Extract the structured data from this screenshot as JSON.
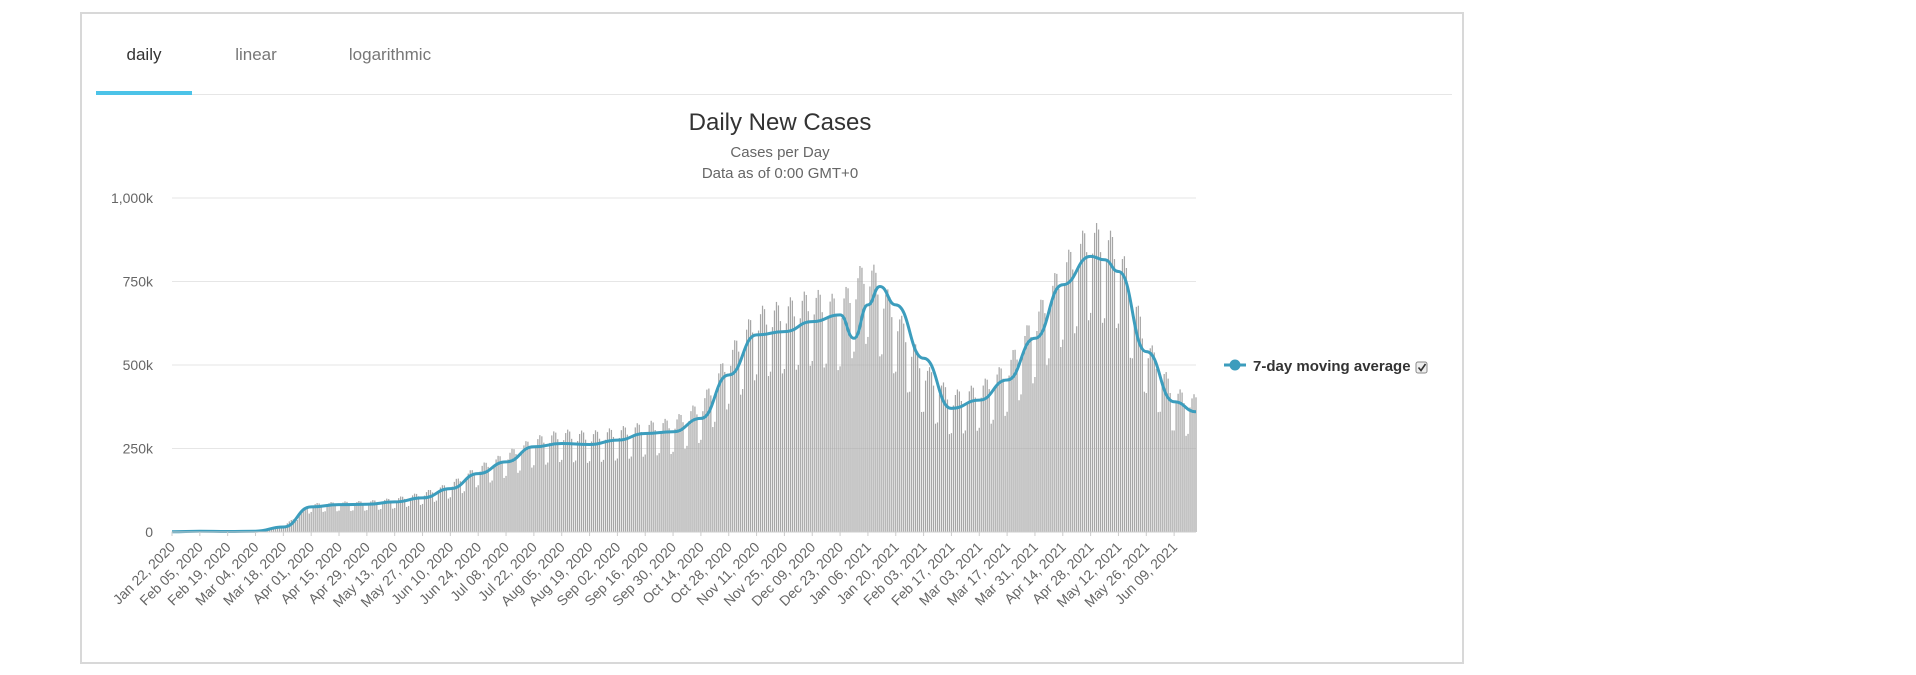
{
  "tabs": [
    {
      "label": "daily",
      "active": true
    },
    {
      "label": "linear",
      "active": false
    },
    {
      "label": "logarithmic",
      "active": false
    }
  ],
  "colors": {
    "accent": "#4cc3e8",
    "line": "#3c9dbd",
    "bars": "#a6a6a6",
    "grid": "#e6e6e6"
  },
  "chart_data": {
    "type": "bar",
    "title": "Daily New Cases",
    "subtitle": [
      "Cases per Day",
      "Data as of 0:00 GMT+0"
    ],
    "xlabel": "",
    "ylabel": "",
    "ylim": [
      0,
      1000000
    ],
    "yticks": [
      0,
      250000,
      500000,
      750000,
      1000000
    ],
    "ytick_labels": [
      "0",
      "250k",
      "500k",
      "750k",
      "1,000k"
    ],
    "x_range": [
      "2020-01-22",
      "2021-06-20"
    ],
    "xtick_labels": [
      "Jan 22, 2020",
      "Feb 05, 2020",
      "Feb 19, 2020",
      "Mar 04, 2020",
      "Mar 18, 2020",
      "Apr 01, 2020",
      "Apr 15, 2020",
      "Apr 29, 2020",
      "May 13, 2020",
      "May 27, 2020",
      "Jun 10, 2020",
      "Jun 24, 2020",
      "Jul 08, 2020",
      "Jul 22, 2020",
      "Aug 05, 2020",
      "Aug 19, 2020",
      "Sep 02, 2020",
      "Sep 16, 2020",
      "Sep 30, 2020",
      "Oct 14, 2020",
      "Oct 28, 2020",
      "Nov 11, 2020",
      "Nov 25, 2020",
      "Dec 09, 2020",
      "Dec 23, 2020",
      "Jan 06, 2021",
      "Jan 20, 2021",
      "Feb 03, 2021",
      "Feb 17, 2021",
      "Mar 03, 2021",
      "Mar 17, 2021",
      "Mar 31, 2021",
      "Apr 14, 2021",
      "Apr 28, 2021",
      "May 12, 2021",
      "May 26, 2021",
      "Jun 09, 2021"
    ],
    "grid": true,
    "legend_position": "right",
    "series": [
      {
        "name": "",
        "type": "bar",
        "x": [
          "2020-01-22",
          "2020-02-05",
          "2020-02-19",
          "2020-03-04",
          "2020-03-18",
          "2020-04-01",
          "2020-04-15",
          "2020-04-29",
          "2020-05-13",
          "2020-05-27",
          "2020-06-10",
          "2020-06-24",
          "2020-07-08",
          "2020-07-22",
          "2020-08-05",
          "2020-08-19",
          "2020-09-02",
          "2020-09-16",
          "2020-09-30",
          "2020-10-14",
          "2020-10-28",
          "2020-11-11",
          "2020-11-25",
          "2020-12-09",
          "2020-12-23",
          "2021-01-06",
          "2021-01-20",
          "2021-02-03",
          "2021-02-17",
          "2021-03-03",
          "2021-03-17",
          "2021-03-31",
          "2021-04-14",
          "2021-04-28",
          "2021-05-12",
          "2021-05-26",
          "2021-06-09",
          "2021-06-20"
        ],
        "values": [
          600,
          2000,
          1500,
          2500,
          15000,
          75000,
          80000,
          82000,
          90000,
          105000,
          130000,
          175000,
          210000,
          250000,
          270000,
          265000,
          275000,
          290000,
          300000,
          345000,
          480000,
          590000,
          610000,
          640000,
          620000,
          730000,
          600000,
          450000,
          370000,
          390000,
          450000,
          580000,
          720000,
          820000,
          780000,
          520000,
          380000,
          360000
        ]
      },
      {
        "name": "7-day moving average",
        "type": "line",
        "x": [
          "2020-01-22",
          "2020-02-05",
          "2020-02-19",
          "2020-03-04",
          "2020-03-18",
          "2020-04-01",
          "2020-04-15",
          "2020-04-29",
          "2020-05-13",
          "2020-05-27",
          "2020-06-10",
          "2020-06-24",
          "2020-07-08",
          "2020-07-22",
          "2020-08-05",
          "2020-08-19",
          "2020-09-02",
          "2020-09-16",
          "2020-09-30",
          "2020-10-14",
          "2020-10-28",
          "2020-11-11",
          "2020-11-25",
          "2020-12-09",
          "2020-12-23",
          "2020-12-30",
          "2021-01-06",
          "2021-01-12",
          "2021-01-20",
          "2021-02-03",
          "2021-02-17",
          "2021-03-03",
          "2021-03-17",
          "2021-03-31",
          "2021-04-14",
          "2021-04-28",
          "2021-05-05",
          "2021-05-12",
          "2021-05-26",
          "2021-06-09",
          "2021-06-20"
        ],
        "values": [
          600,
          2000,
          1500,
          2500,
          15000,
          75000,
          82000,
          83000,
          90000,
          102000,
          130000,
          175000,
          210000,
          255000,
          265000,
          262000,
          275000,
          295000,
          300000,
          340000,
          470000,
          590000,
          600000,
          630000,
          650000,
          580000,
          680000,
          735000,
          680000,
          520000,
          370000,
          395000,
          455000,
          580000,
          740000,
          825000,
          815000,
          780000,
          540000,
          390000,
          360000
        ]
      }
    ]
  }
}
